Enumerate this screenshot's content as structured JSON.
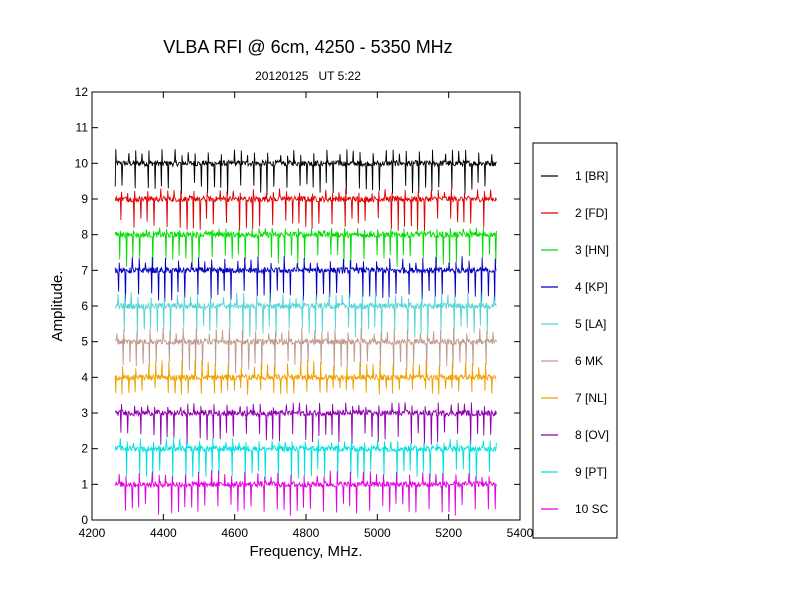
{
  "chart_data": {
    "type": "line",
    "title": "VLBA RFI @ 6cm, 4250 - 5350 MHz",
    "subtitle": "20120125   UT 5:22",
    "xlabel": "Frequency, MHz.",
    "ylabel": "Amplitude.",
    "xlim": [
      4200,
      5400
    ],
    "ylim": [
      0,
      12
    ],
    "x_ticks": [
      "4200",
      "4400",
      "4600",
      "4800",
      "5000",
      "5200",
      "5400"
    ],
    "y_ticks": [
      "0",
      "1",
      "2",
      "3",
      "4",
      "5",
      "6",
      "7",
      "8",
      "9",
      "10",
      "11",
      "12"
    ],
    "x_range_data": [
      4265,
      5335
    ],
    "grid": false,
    "legend_position": "right",
    "series": [
      {
        "name": "1 [BR]",
        "color": "#000000",
        "baseline": 10.0,
        "dip_depth": 0.9,
        "spike_height": 0.4
      },
      {
        "name": "2 [FD]",
        "color": "#e00000",
        "baseline": 9.0,
        "dip_depth": 0.9,
        "spike_height": 0.3
      },
      {
        "name": "3 [HN]",
        "color": "#00dd00",
        "baseline": 8.0,
        "dip_depth": 0.9,
        "spike_height": 0.2
      },
      {
        "name": "4 [KP]",
        "color": "#0000c0",
        "baseline": 7.0,
        "dip_depth": 0.9,
        "spike_height": 0.4
      },
      {
        "name": "5 [LA]",
        "color": "#55d5d5",
        "baseline": 6.0,
        "dip_depth": 0.9,
        "spike_height": 0.4
      },
      {
        "name": "6 MK",
        "color": "#c09a8e",
        "baseline": 5.0,
        "dip_depth": 0.9,
        "spike_height": 0.4
      },
      {
        "name": "7 [NL]",
        "color": "#f0a000",
        "baseline": 4.0,
        "dip_depth": 0.5,
        "spike_height": 0.5
      },
      {
        "name": "8 [OV]",
        "color": "#9000b0",
        "baseline": 3.0,
        "dip_depth": 0.9,
        "spike_height": 0.3
      },
      {
        "name": "9 [PT]",
        "color": "#00e0e0",
        "baseline": 2.0,
        "dip_depth": 0.9,
        "spike_height": 0.3
      },
      {
        "name": "10 SC",
        "color": "#e000e0",
        "baseline": 1.0,
        "dip_depth": 0.9,
        "spike_height": 0.4
      }
    ]
  }
}
